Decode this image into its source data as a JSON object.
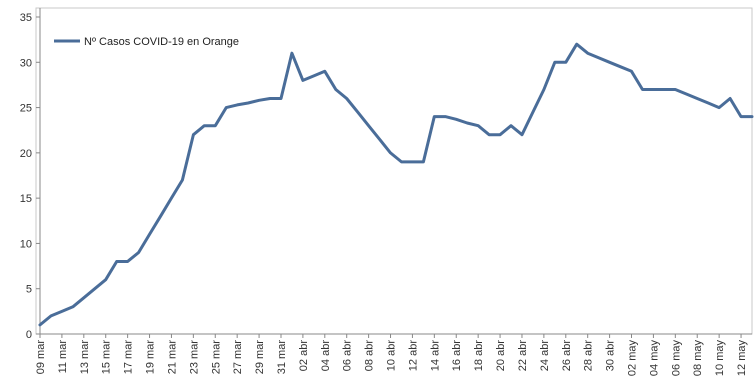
{
  "chart_data": {
    "type": "line",
    "title": "",
    "xlabel": "",
    "ylabel": "",
    "ylim": [
      0,
      35
    ],
    "yticks": [
      0,
      5,
      10,
      15,
      20,
      25,
      30,
      35
    ],
    "grid": false,
    "legend_position": "top-left",
    "x_tick_labels": [
      "09 mar",
      "11 mar",
      "13 mar",
      "15 mar",
      "17 mar",
      "19 mar",
      "21 mar",
      "23 mar",
      "25 mar",
      "27 mar",
      "29 mar",
      "31 mar",
      "02 abr",
      "04 abr",
      "06 abr",
      "08 abr",
      "10 abr",
      "12 abr",
      "14 abr",
      "16 abr",
      "18 abr",
      "20 abr",
      "22 abr",
      "24 abr",
      "26 abr",
      "28 abr",
      "30 abr",
      "02 may",
      "04 may",
      "06 may",
      "08 may",
      "10 may",
      "12 may"
    ],
    "series": [
      {
        "name": "Nº Casos COVID-19 en Orange",
        "color": "#4a6d99",
        "x": [
          "09 mar",
          "10 mar",
          "11 mar",
          "12 mar",
          "13 mar",
          "14 mar",
          "15 mar",
          "16 mar",
          "17 mar",
          "18 mar",
          "19 mar",
          "20 mar",
          "21 mar",
          "22 mar",
          "23 mar",
          "24 mar",
          "25 mar",
          "26 mar",
          "27 mar",
          "28 mar",
          "29 mar",
          "30 mar",
          "31 mar",
          "01 abr",
          "02 abr",
          "03 abr",
          "04 abr",
          "05 abr",
          "06 abr",
          "07 abr",
          "08 abr",
          "09 abr",
          "10 abr",
          "11 abr",
          "12 abr",
          "13 abr",
          "14 abr",
          "15 abr",
          "16 abr",
          "17 abr",
          "18 abr",
          "19 abr",
          "20 abr",
          "21 abr",
          "22 abr",
          "23 abr",
          "24 abr",
          "25 abr",
          "26 abr",
          "27 abr",
          "28 abr",
          "29 abr",
          "30 abr",
          "01 may",
          "02 may",
          "03 may",
          "04 may",
          "05 may",
          "06 may",
          "07 may",
          "08 may",
          "09 may",
          "10 may",
          "11 may",
          "12 may",
          "13 may"
        ],
        "values": [
          1,
          2,
          2.5,
          3,
          4,
          5,
          6,
          8,
          8,
          9,
          11,
          13,
          15,
          17,
          22,
          23,
          23,
          25,
          25.3,
          25.5,
          25.8,
          26,
          26,
          31,
          28,
          28.5,
          29,
          27,
          26,
          24.5,
          23,
          21.5,
          20,
          19,
          19,
          19,
          24,
          24,
          23.7,
          23.3,
          23,
          22,
          22,
          23,
          22,
          24.5,
          27,
          30,
          30,
          32,
          31,
          30.5,
          30,
          29.5,
          29,
          27,
          27,
          27,
          27,
          26.5,
          26,
          25.5,
          25,
          26,
          24,
          24
        ]
      }
    ]
  }
}
